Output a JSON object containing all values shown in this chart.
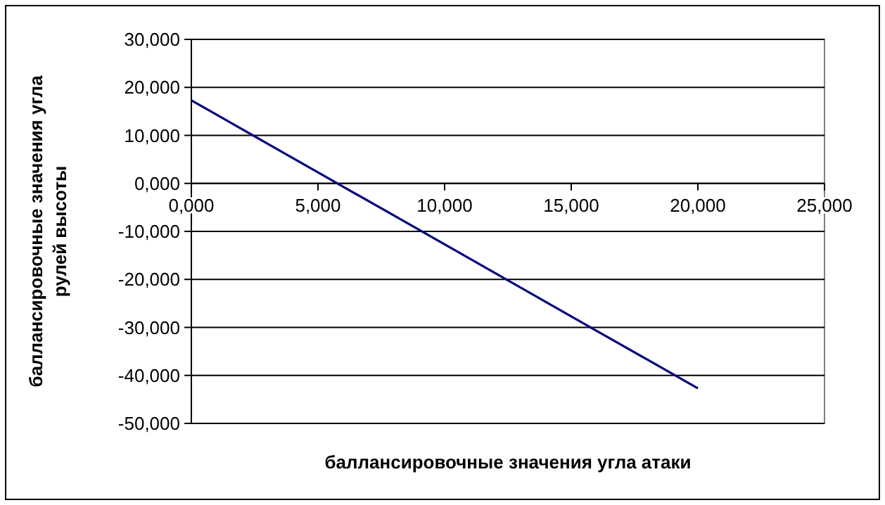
{
  "chart_data": {
    "type": "line",
    "xlabel": "баллансировочные значения угла атаки",
    "ylabel": "баллансировочные значения угла рулей высоты",
    "series": [
      {
        "color": "#000080",
        "x": [
          0,
          2,
          4,
          6,
          8,
          10,
          12,
          14,
          16,
          18,
          20
        ],
        "values": [
          17.3,
          11.3,
          5.3,
          -0.7,
          -6.7,
          -12.7,
          -18.7,
          -24.7,
          -30.7,
          -36.7,
          -42.7
        ]
      }
    ],
    "xlim": [
      0,
      25
    ],
    "xticks": [
      {
        "value": 0,
        "label": "0,000"
      },
      {
        "value": 5,
        "label": "5,000"
      },
      {
        "value": 10,
        "label": "10,000"
      },
      {
        "value": 15,
        "label": "15,000"
      },
      {
        "value": 20,
        "label": "20,000"
      },
      {
        "value": 25,
        "label": "25,000"
      }
    ],
    "ylim": [
      -50,
      30
    ],
    "yticks": [
      {
        "value": -50,
        "label": "-50,000"
      },
      {
        "value": -40,
        "label": "-40,000"
      },
      {
        "value": -30,
        "label": "-30,000"
      },
      {
        "value": -20,
        "label": "-20,000"
      },
      {
        "value": -10,
        "label": "-10,000"
      },
      {
        "value": 0,
        "label": "0,000"
      },
      {
        "value": 10,
        "label": "10,000"
      },
      {
        "value": 20,
        "label": "20,000"
      },
      {
        "value": 30,
        "label": "30,000"
      }
    ],
    "grid": "y",
    "marker": "none",
    "line_style": "solid"
  }
}
